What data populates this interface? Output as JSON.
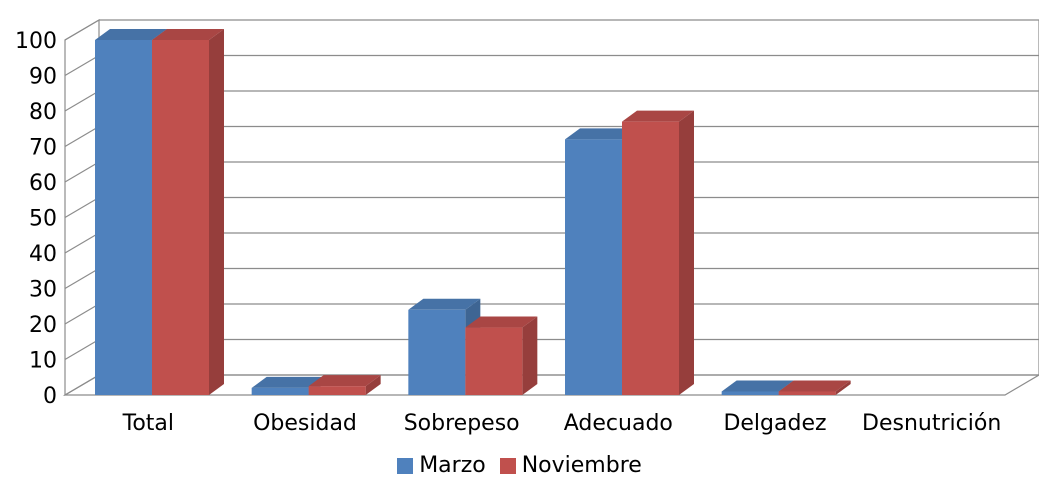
{
  "chart_data": {
    "type": "bar",
    "style": "3d-clustered-column",
    "categories": [
      "Total",
      "Obesidad",
      "Sobrepeso",
      "Adecuado",
      "Delgadez",
      "Desnutrición"
    ],
    "series": [
      {
        "name": "Marzo",
        "color": "#4f81bd",
        "values": [
          100,
          2,
          24,
          72,
          1,
          0
        ]
      },
      {
        "name": "Noviembre",
        "color": "#c0504d",
        "values": [
          100,
          2.5,
          19,
          77,
          1,
          0
        ]
      }
    ],
    "ylim": [
      0,
      100
    ],
    "yticks": [
      "0",
      "10",
      "20",
      "30",
      "40",
      "50",
      "60",
      "70",
      "80",
      "90",
      "100"
    ],
    "grid": true,
    "legend": "bottom",
    "title": "",
    "xlabel": "",
    "ylabel": ""
  }
}
